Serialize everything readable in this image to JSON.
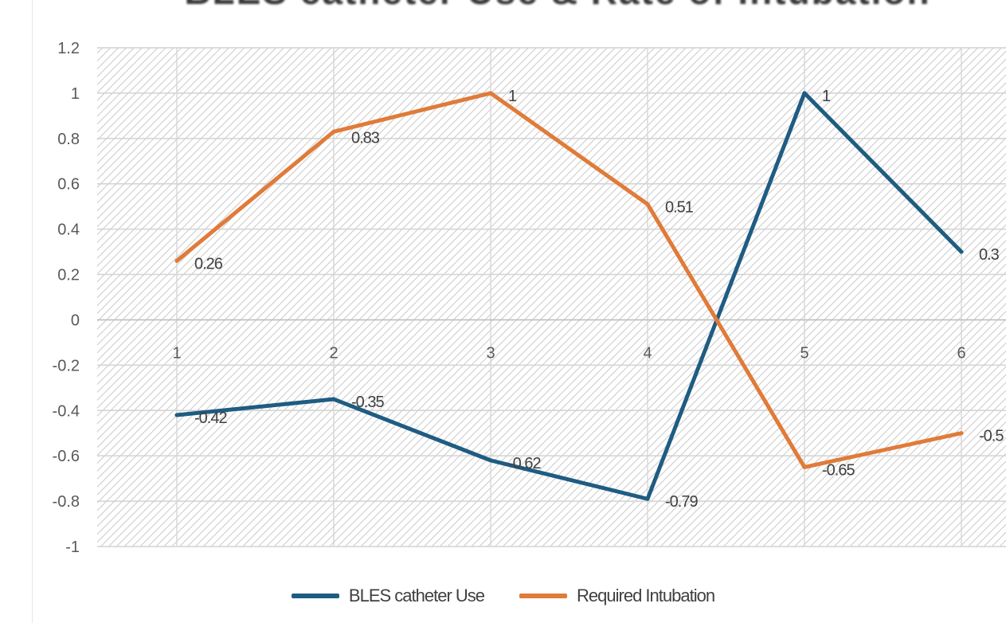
{
  "chart_data": {
    "type": "line",
    "title": "BLES catheter Use & Rate of Intubation",
    "categories": [
      "1",
      "2",
      "3",
      "4",
      "5",
      "6"
    ],
    "ylim": [
      -1,
      1.2
    ],
    "yticks": [
      "1.2",
      "1",
      "0.8",
      "0.6",
      "0.4",
      "0.2",
      "0",
      "-0.2",
      "-0.4",
      "-0.6",
      "-0.8",
      "-1"
    ],
    "grid": true,
    "legend_position": "bottom",
    "series": [
      {
        "name": "BLES catheter Use",
        "color": "#1f5c82",
        "values": [
          -0.42,
          -0.35,
          -0.62,
          -0.79,
          1,
          0.3
        ],
        "labels": [
          "-0.42",
          "-0.35",
          "-0.62",
          "-0.79",
          "1",
          "0.3"
        ]
      },
      {
        "name": "Required Intubation",
        "color": "#e07b39",
        "values": [
          0.26,
          0.83,
          1,
          0.51,
          -0.65,
          -0.5
        ],
        "labels": [
          "0.26",
          "0.83",
          "1",
          "0.51",
          "-0.65",
          "-0.5"
        ]
      }
    ]
  }
}
